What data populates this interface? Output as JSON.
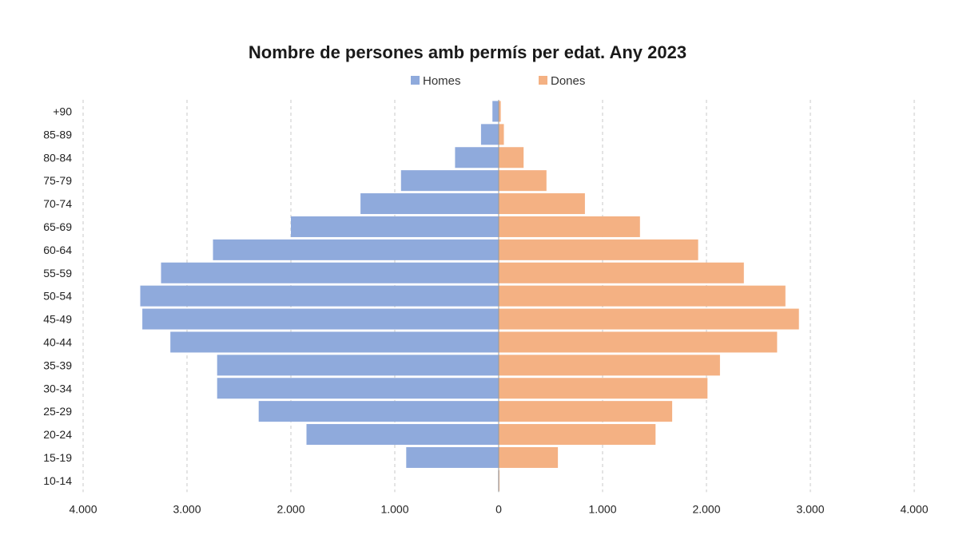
{
  "chart_data": {
    "type": "bar",
    "orientation": "horizontal",
    "layout": "population-pyramid",
    "title": "Nombre de persones amb permís per edat. Any 2023",
    "legend_position": "top",
    "categories": [
      "+90",
      "85-89",
      "80-84",
      "75-79",
      "70-74",
      "65-69",
      "60-64",
      "55-59",
      "50-54",
      "45-49",
      "40-44",
      "35-39",
      "30-34",
      "25-29",
      "20-24",
      "15-19",
      "10-14"
    ],
    "series": [
      {
        "name": "Homes",
        "color": "#8faadc",
        "side": "left",
        "values": [
          60,
          170,
          420,
          940,
          1330,
          2000,
          2750,
          3250,
          3450,
          3430,
          3160,
          2710,
          2710,
          2310,
          1850,
          890,
          5
        ]
      },
      {
        "name": "Dones",
        "color": "#f4b183",
        "side": "right",
        "values": [
          20,
          50,
          240,
          460,
          830,
          1360,
          1920,
          2360,
          2760,
          2890,
          2680,
          2130,
          2010,
          1670,
          1510,
          570,
          5
        ]
      }
    ],
    "xlim": [
      -4000,
      4000
    ],
    "x_ticks": [
      -4000,
      -3000,
      -2000,
      -1000,
      0,
      1000,
      2000,
      3000,
      4000
    ],
    "x_tick_labels": [
      "4.000",
      "3.000",
      "2.000",
      "1.000",
      "0",
      "1.000",
      "2.000",
      "3.000",
      "4.000"
    ],
    "grid": true
  }
}
